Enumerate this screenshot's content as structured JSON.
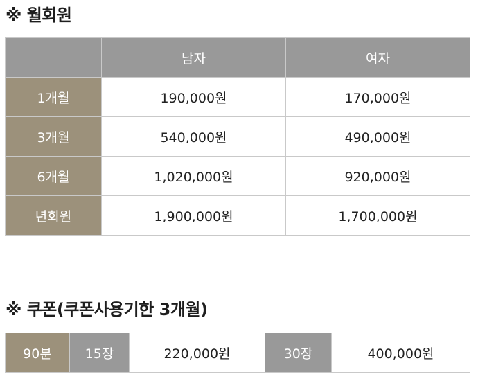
{
  "membership": {
    "title": "※ 월회원",
    "headers": [
      "",
      "남자",
      "여자"
    ],
    "rows": [
      {
        "label": "1개월",
        "male": "190,000원",
        "female": "170,000원"
      },
      {
        "label": "3개월",
        "male": "540,000원",
        "female": "490,000원"
      },
      {
        "label": "6개월",
        "male": "1,020,000원",
        "female": "920,000원"
      },
      {
        "label": "년회원",
        "male": "1,900,000원",
        "female": "1,700,000원"
      }
    ]
  },
  "coupon": {
    "title": "※ 쿠폰(쿠폰사용기한 3개월)",
    "duration": "90분",
    "options": [
      {
        "count": "15장",
        "price": "220,000원"
      },
      {
        "count": "30장",
        "price": "400,000원"
      }
    ]
  },
  "colors": {
    "header_gray": "#999999",
    "label_khaki": "#9c917b",
    "border": "#c9c9c9"
  }
}
